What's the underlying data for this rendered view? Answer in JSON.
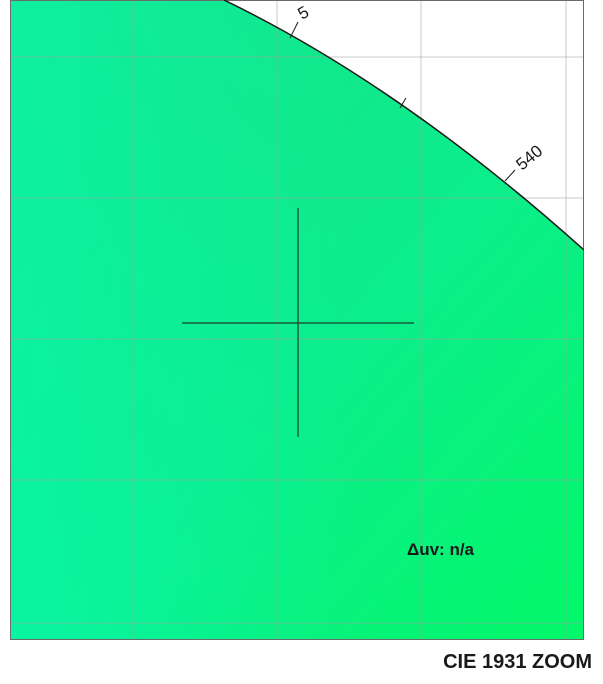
{
  "title": "CIE 1931 ZOOM",
  "readout": {
    "delta_uv": "Δuv: n/a"
  },
  "wavelength_labels": [
    "5",
    "540"
  ],
  "colors": {
    "background": "#ffffff",
    "gamut_fill_top": "#19e592",
    "gamut_fill_bottom_right": "#00f060",
    "gamut_fill_bottom_left": "#06fcb0",
    "grid_lines": "#c8c8c8",
    "locus_line": "#1a1a1a",
    "crosshair": "#1d3f2f"
  }
}
